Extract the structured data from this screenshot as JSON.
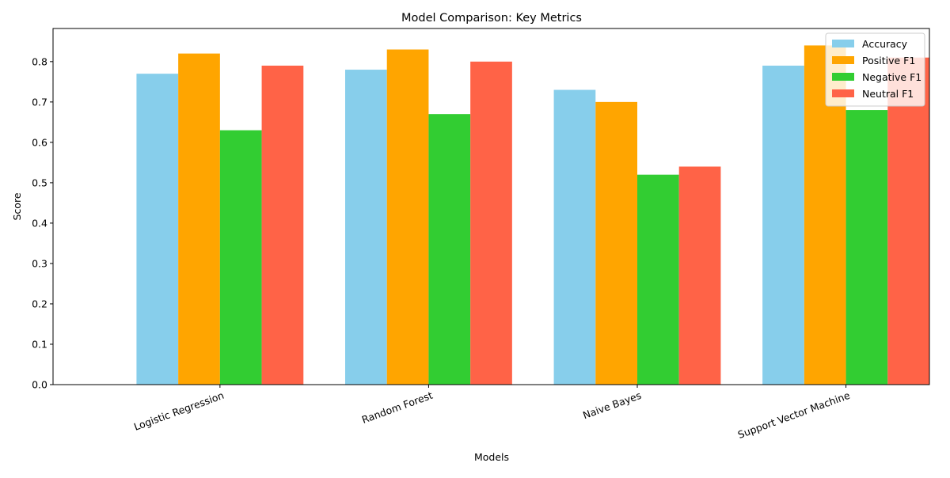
{
  "chart_data": {
    "type": "bar",
    "title": "Model Comparison: Key Metrics",
    "xlabel": "Models",
    "ylabel": "Score",
    "categories": [
      "Logistic Regression",
      "Random Forest",
      "Naive Bayes",
      "Support Vector Machine"
    ],
    "series": [
      {
        "name": "Accuracy",
        "color": "#87ceeb",
        "values": [
          0.77,
          0.78,
          0.73,
          0.79
        ]
      },
      {
        "name": "Positive F1",
        "color": "#ffa500",
        "values": [
          0.82,
          0.83,
          0.7,
          0.84
        ]
      },
      {
        "name": "Negative F1",
        "color": "#32cd32",
        "values": [
          0.63,
          0.67,
          0.52,
          0.68
        ]
      },
      {
        "name": "Neutral F1",
        "color": "#ff6347",
        "values": [
          0.79,
          0.8,
          0.54,
          0.81
        ]
      }
    ],
    "ylim": [
      0,
      0.882
    ],
    "yticks": [
      "0.0",
      "0.1",
      "0.2",
      "0.3",
      "0.4",
      "0.5",
      "0.6",
      "0.7",
      "0.8"
    ],
    "grid": false,
    "legend_position": "top-right"
  }
}
